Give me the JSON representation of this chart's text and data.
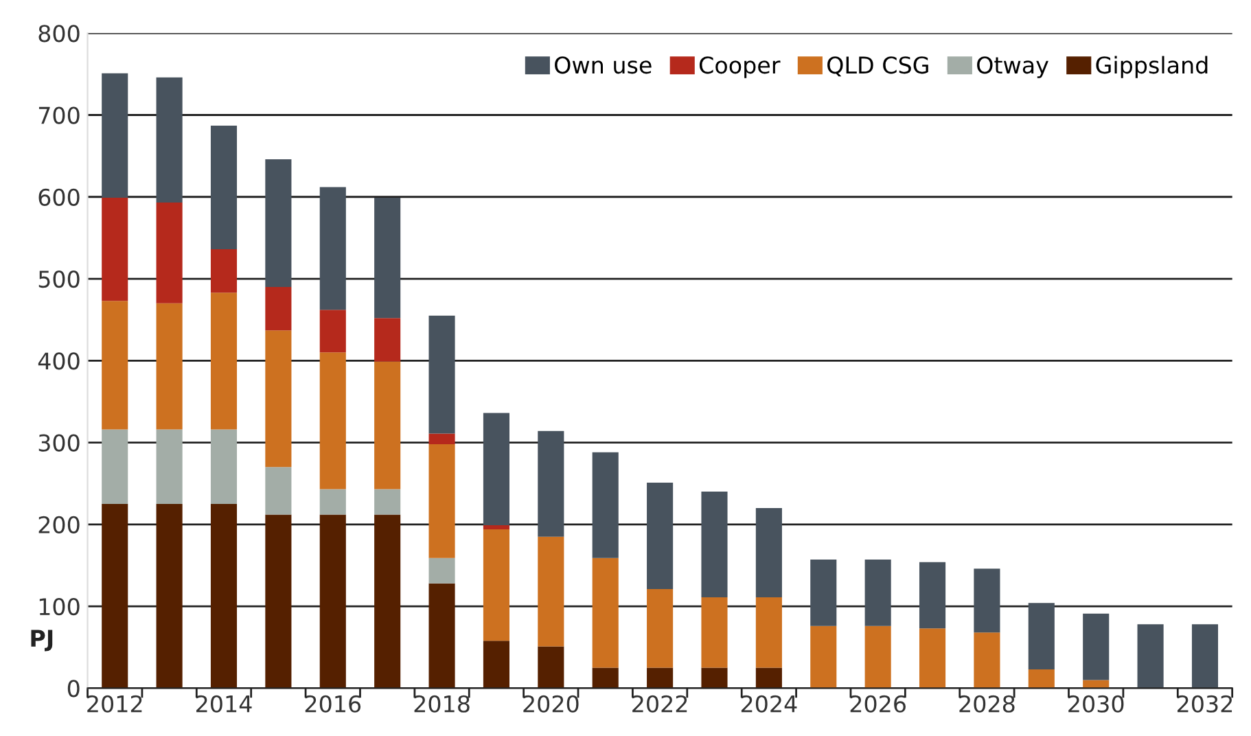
{
  "chart_data": {
    "type": "bar",
    "stacked": true,
    "ylabel": "PJ",
    "categories": [
      "2012",
      null,
      "2014",
      null,
      "2016",
      null,
      "2018",
      null,
      "2020",
      null,
      "2022",
      null,
      "2024",
      null,
      "2026",
      null,
      "2028",
      null,
      "2030",
      null,
      "2032"
    ],
    "series": [
      {
        "name": "Gippsland",
        "color": "#552000",
        "values": [
          225,
          225,
          225,
          212,
          212,
          212,
          128,
          58,
          51,
          25,
          25,
          25,
          25,
          0,
          0,
          0,
          0,
          0,
          0,
          0,
          0
        ]
      },
      {
        "name": "Otway",
        "color": "#a3ada7",
        "values": [
          91,
          91,
          91,
          58,
          31,
          31,
          31,
          0,
          0,
          0,
          0,
          0,
          0,
          0,
          0,
          0,
          0,
          0,
          0,
          0,
          0
        ]
      },
      {
        "name": "QLD CSG",
        "color": "#cd7120",
        "values": [
          157,
          154,
          167,
          167,
          167,
          156,
          139,
          136,
          134,
          134,
          96,
          86,
          86,
          76,
          76,
          73,
          68,
          23,
          10,
          0,
          0
        ]
      },
      {
        "name": "Cooper",
        "color": "#b5291c",
        "values": [
          126,
          123,
          53,
          53,
          52,
          53,
          13,
          5,
          0,
          0,
          0,
          0,
          0,
          0,
          0,
          0,
          0,
          0,
          0,
          0,
          0
        ]
      },
      {
        "name": "Own use",
        "color": "#48535e",
        "values": [
          152,
          153,
          151,
          156,
          150,
          147,
          144,
          137,
          129,
          129,
          130,
          129,
          109,
          81,
          81,
          81,
          78,
          81,
          81,
          78,
          78
        ]
      }
    ],
    "ylim": [
      0,
      800
    ],
    "yticks": [
      0,
      100,
      200,
      300,
      400,
      500,
      600,
      700,
      800
    ],
    "grid": "y",
    "legend": "top right"
  }
}
